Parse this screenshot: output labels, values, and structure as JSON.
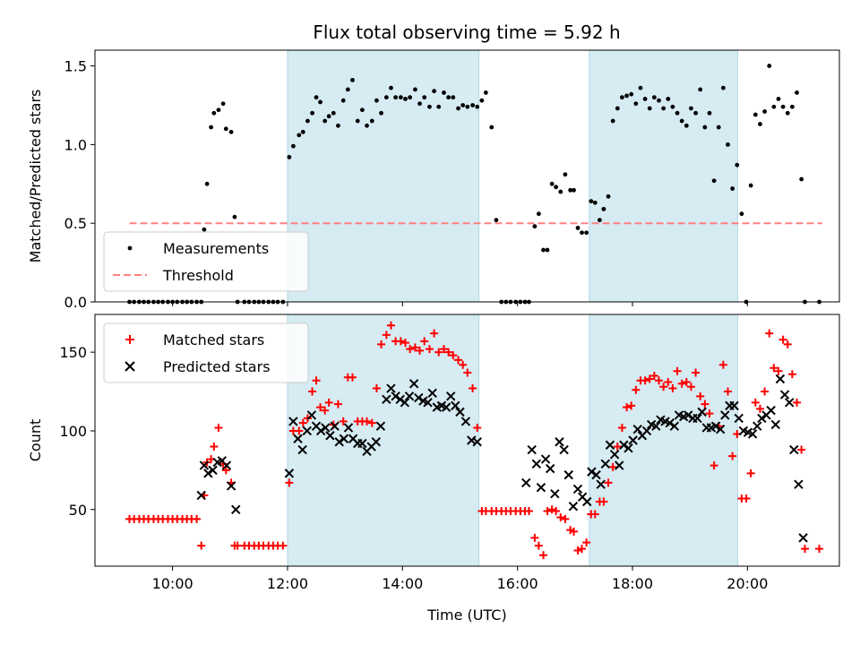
{
  "figure": {
    "title": "Flux total observing time = 5.92 h"
  },
  "chart_data": [
    {
      "type": "scatter",
      "id": "ratio",
      "title": "Flux total observing time = 5.92 h",
      "xlabel": "",
      "ylabel": "Matched/Predicted stars",
      "xlim": [
        8.65,
        21.6
      ],
      "ylim": [
        0,
        1.6
      ],
      "yticks": [
        0.0,
        0.5,
        1.0,
        1.5
      ],
      "ytick_labels": [
        "0.0",
        "0.5",
        "1.0",
        "1.5"
      ],
      "shaded_intervals": [
        [
          12.0,
          15.33
        ],
        [
          17.25,
          19.83
        ]
      ],
      "threshold": {
        "value": 0.5,
        "x_range": [
          9.25,
          21.3
        ],
        "color": "#ff8080",
        "name": "Threshold"
      },
      "series": [
        {
          "name": "Measurements",
          "color": "#000000",
          "x": [
            9.25,
            9.33,
            9.42,
            9.5,
            9.58,
            9.67,
            9.75,
            9.83,
            9.92,
            10.0,
            10.08,
            10.17,
            10.25,
            10.33,
            10.42,
            10.5,
            10.55,
            10.6,
            10.67,
            10.72,
            10.8,
            10.88,
            10.93,
            11.02,
            11.08,
            11.13,
            11.25,
            11.33,
            11.42,
            11.5,
            11.58,
            11.67,
            11.75,
            11.83,
            11.92,
            12.03,
            12.1,
            12.2,
            12.27,
            12.35,
            12.43,
            12.5,
            12.57,
            12.65,
            12.72,
            12.8,
            12.88,
            12.97,
            13.05,
            13.13,
            13.22,
            13.3,
            13.38,
            13.47,
            13.55,
            13.63,
            13.72,
            13.8,
            13.88,
            13.97,
            14.05,
            14.13,
            14.22,
            14.3,
            14.38,
            14.47,
            14.55,
            14.63,
            14.72,
            14.8,
            14.88,
            14.97,
            15.05,
            15.13,
            15.22,
            15.3,
            15.38,
            15.45,
            15.55,
            15.63,
            15.72,
            15.8,
            15.88,
            15.97,
            16.05,
            16.13,
            16.2,
            16.3,
            16.37,
            16.45,
            16.52,
            16.6,
            16.67,
            16.75,
            16.83,
            16.92,
            16.98,
            17.05,
            17.12,
            17.2,
            17.28,
            17.35,
            17.43,
            17.5,
            17.58,
            17.66,
            17.74,
            17.82,
            17.9,
            17.98,
            18.06,
            18.14,
            18.22,
            18.3,
            18.38,
            18.46,
            18.54,
            18.62,
            18.7,
            18.78,
            18.86,
            18.94,
            19.02,
            19.1,
            19.18,
            19.26,
            19.34,
            19.42,
            19.5,
            19.58,
            19.66,
            19.74,
            19.82,
            19.9,
            19.98,
            20.06,
            20.14,
            20.22,
            20.3,
            20.38,
            20.46,
            20.54,
            20.62,
            20.7,
            20.78,
            20.86,
            20.94,
            21.0,
            21.25
          ],
          "values": [
            0.0,
            0.0,
            0.0,
            0.0,
            0.0,
            0.0,
            0.0,
            0.0,
            0.0,
            0.0,
            0.0,
            0.0,
            0.0,
            0.0,
            0.0,
            0.0,
            0.46,
            0.75,
            1.11,
            1.2,
            1.22,
            1.26,
            1.1,
            1.08,
            0.54,
            0.0,
            0.0,
            0.0,
            0.0,
            0.0,
            0.0,
            0.0,
            0.0,
            0.0,
            0.0,
            0.92,
            0.99,
            1.06,
            1.08,
            1.15,
            1.2,
            1.3,
            1.27,
            1.15,
            1.18,
            1.2,
            1.12,
            1.28,
            1.35,
            1.41,
            1.15,
            1.22,
            1.12,
            1.15,
            1.28,
            1.2,
            1.3,
            1.36,
            1.3,
            1.3,
            1.29,
            1.3,
            1.35,
            1.26,
            1.3,
            1.24,
            1.34,
            1.24,
            1.33,
            1.3,
            1.3,
            1.23,
            1.25,
            1.24,
            1.25,
            1.24,
            1.28,
            1.33,
            1.11,
            0.52,
            0.0,
            0.0,
            0.0,
            0.0,
            0.0,
            0.0,
            0.0,
            0.48,
            0.56,
            0.33,
            0.33,
            0.75,
            0.73,
            0.7,
            0.81,
            0.71,
            0.71,
            0.47,
            0.44,
            0.44,
            0.64,
            0.63,
            0.52,
            0.59,
            0.67,
            1.15,
            1.23,
            1.3,
            1.31,
            1.32,
            1.26,
            1.36,
            1.29,
            1.23,
            1.3,
            1.28,
            1.23,
            1.29,
            1.24,
            1.2,
            1.15,
            1.12,
            1.23,
            1.2,
            1.35,
            1.11,
            1.2,
            0.77,
            1.11,
            1.36,
            1.0,
            0.72,
            0.87,
            0.56,
            0.0,
            0.74,
            1.19,
            1.13,
            1.21,
            1.5,
            1.24,
            1.29,
            1.24,
            1.2,
            1.24,
            1.33,
            0.78,
            0.0,
            0.0
          ]
        }
      ],
      "legend": [
        {
          "label": "Measurements",
          "kind": "dot",
          "color": "#000000"
        },
        {
          "label": "Threshold",
          "kind": "dash",
          "color": "#ff8080"
        }
      ]
    },
    {
      "type": "scatter",
      "id": "counts",
      "title": "",
      "xlabel": "Time (UTC)",
      "ylabel": "Count",
      "xlim": [
        8.65,
        21.6
      ],
      "ylim": [
        14,
        174
      ],
      "yticks": [
        50,
        100,
        150
      ],
      "ytick_labels": [
        "50",
        "100",
        "150"
      ],
      "xticks": [
        10,
        12,
        14,
        16,
        18,
        20
      ],
      "xtick_labels": [
        "10:00",
        "12:00",
        "14:00",
        "16:00",
        "18:00",
        "20:00"
      ],
      "shaded_intervals": [
        [
          12.0,
          15.33
        ],
        [
          17.25,
          19.83
        ]
      ],
      "series": [
        {
          "name": "Matched stars",
          "marker": "+",
          "color": "#ff0000",
          "x": [
            9.25,
            9.33,
            9.42,
            9.5,
            9.58,
            9.67,
            9.75,
            9.83,
            9.92,
            10.0,
            10.08,
            10.17,
            10.25,
            10.33,
            10.42,
            10.5,
            10.55,
            10.6,
            10.67,
            10.72,
            10.8,
            10.88,
            10.93,
            11.02,
            11.08,
            11.13,
            11.25,
            11.33,
            11.42,
            11.5,
            11.58,
            11.67,
            11.75,
            11.83,
            11.92,
            12.03,
            12.1,
            12.2,
            12.27,
            12.35,
            12.43,
            12.5,
            12.57,
            12.65,
            12.72,
            12.8,
            12.88,
            12.97,
            13.05,
            13.13,
            13.22,
            13.3,
            13.38,
            13.47,
            13.55,
            13.63,
            13.72,
            13.8,
            13.88,
            13.97,
            14.05,
            14.13,
            14.22,
            14.3,
            14.38,
            14.47,
            14.55,
            14.63,
            14.72,
            14.8,
            14.88,
            14.97,
            15.05,
            15.13,
            15.22,
            15.3,
            15.38,
            15.45,
            15.55,
            15.63,
            15.72,
            15.8,
            15.88,
            15.97,
            16.05,
            16.13,
            16.2,
            16.3,
            16.37,
            16.45,
            16.52,
            16.6,
            16.67,
            16.75,
            16.83,
            16.92,
            16.98,
            17.05,
            17.12,
            17.2,
            17.28,
            17.35,
            17.43,
            17.5,
            17.58,
            17.66,
            17.74,
            17.82,
            17.9,
            17.98,
            18.06,
            18.14,
            18.22,
            18.3,
            18.38,
            18.46,
            18.54,
            18.62,
            18.7,
            18.78,
            18.86,
            18.94,
            19.02,
            19.1,
            19.18,
            19.26,
            19.34,
            19.42,
            19.5,
            19.58,
            19.66,
            19.74,
            19.82,
            19.9,
            19.98,
            20.06,
            20.14,
            20.22,
            20.3,
            20.38,
            20.46,
            20.54,
            20.62,
            20.7,
            20.78,
            20.86,
            20.94,
            21.0,
            21.25
          ],
          "values": [
            44,
            44,
            44,
            44,
            44,
            44,
            44,
            44,
            44,
            44,
            44,
            44,
            44,
            44,
            44,
            27,
            59,
            80,
            82,
            90,
            102,
            79,
            75,
            67,
            27,
            27,
            27,
            27,
            27,
            27,
            27,
            27,
            27,
            27,
            27,
            67,
            100,
            100,
            105,
            108,
            125,
            132,
            115,
            113,
            118,
            104,
            117,
            106,
            134,
            134,
            106,
            106,
            106,
            105,
            127,
            155,
            161,
            167,
            157,
            157,
            156,
            152,
            153,
            151,
            157,
            152,
            162,
            150,
            152,
            150,
            148,
            145,
            142,
            137,
            127,
            102,
            49,
            49,
            49,
            49,
            49,
            49,
            49,
            49,
            49,
            49,
            49,
            32,
            27,
            21,
            49,
            50,
            49,
            45,
            44,
            37,
            36,
            24,
            25,
            29,
            47,
            47,
            55,
            55,
            67,
            77,
            90,
            102,
            115,
            116,
            126,
            132,
            132,
            133,
            135,
            132,
            128,
            131,
            127,
            138,
            130,
            131,
            128,
            137,
            122,
            117,
            111,
            78,
            103,
            142,
            125,
            84,
            98,
            57,
            57,
            73,
            118,
            114,
            125,
            162,
            140,
            138,
            158,
            155,
            136,
            118,
            88,
            25,
            25
          ]
        },
        {
          "name": "Predicted stars",
          "marker": "x",
          "color": "#000000",
          "x": [
            10.5,
            10.55,
            10.62,
            10.7,
            10.78,
            10.86,
            10.94,
            11.02,
            11.1,
            12.03,
            12.1,
            12.18,
            12.26,
            12.34,
            12.42,
            12.5,
            12.58,
            12.66,
            12.74,
            12.82,
            12.9,
            12.98,
            13.06,
            13.14,
            13.22,
            13.3,
            13.38,
            13.46,
            13.54,
            13.62,
            13.72,
            13.8,
            13.88,
            13.96,
            14.04,
            14.12,
            14.2,
            14.28,
            14.36,
            14.44,
            14.52,
            14.6,
            14.68,
            14.76,
            14.84,
            14.92,
            15.0,
            15.1,
            15.2,
            15.3,
            16.15,
            16.25,
            16.33,
            16.41,
            16.49,
            16.57,
            16.65,
            16.73,
            16.81,
            16.89,
            16.97,
            17.05,
            17.13,
            17.21,
            17.29,
            17.37,
            17.45,
            17.53,
            17.61,
            17.69,
            17.77,
            17.85,
            17.93,
            18.01,
            18.09,
            18.17,
            18.25,
            18.33,
            18.41,
            18.49,
            18.57,
            18.65,
            18.73,
            18.81,
            18.89,
            18.97,
            19.05,
            19.13,
            19.21,
            19.29,
            19.37,
            19.45,
            19.53,
            19.61,
            19.69,
            19.77,
            19.85,
            19.93,
            20.01,
            20.09,
            20.17,
            20.25,
            20.33,
            20.41,
            20.49,
            20.57,
            20.65,
            20.73,
            20.81,
            20.89,
            20.97
          ],
          "values": [
            59,
            78,
            73,
            75,
            80,
            81,
            78,
            65,
            50,
            73,
            106,
            95,
            88,
            100,
            110,
            103,
            100,
            102,
            97,
            103,
            93,
            95,
            102,
            95,
            92,
            92,
            87,
            90,
            93,
            103,
            120,
            127,
            122,
            120,
            118,
            122,
            130,
            121,
            119,
            118,
            124,
            115,
            116,
            115,
            122,
            116,
            112,
            106,
            94,
            93,
            67,
            88,
            79,
            64,
            82,
            76,
            60,
            93,
            88,
            72,
            52,
            63,
            58,
            55,
            74,
            72,
            66,
            79,
            91,
            85,
            78,
            91,
            89,
            94,
            101,
            97,
            100,
            104,
            103,
            107,
            106,
            105,
            103,
            110,
            109,
            110,
            108,
            108,
            112,
            102,
            102,
            103,
            101,
            110,
            116,
            116,
            108,
            100,
            99,
            98,
            103,
            108,
            110,
            113,
            104,
            133,
            123,
            118,
            88,
            66,
            32
          ]
        }
      ],
      "legend": [
        {
          "label": "Matched stars",
          "kind": "plus",
          "color": "#ff0000"
        },
        {
          "label": "Predicted stars",
          "kind": "cross",
          "color": "#000000"
        }
      ]
    }
  ]
}
